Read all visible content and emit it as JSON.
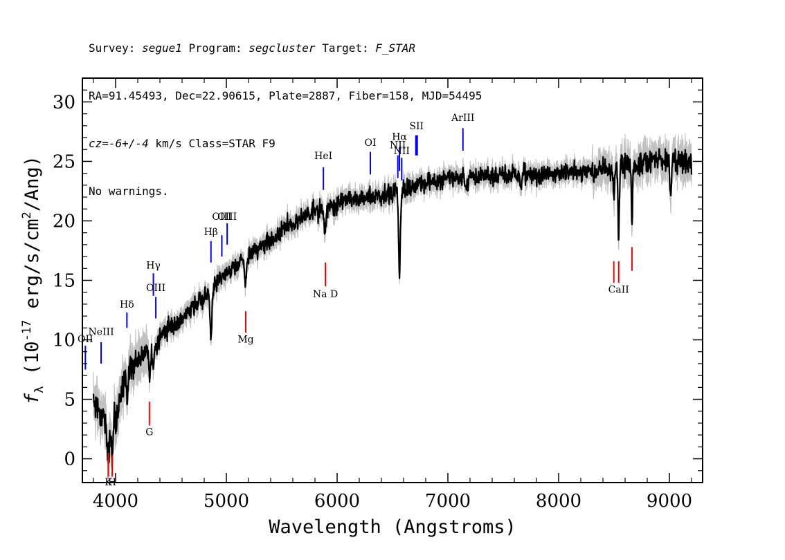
{
  "header": {
    "line1_survey_label": "Survey:",
    "line1_survey": "segue1",
    "line1_program_label": "Program:",
    "line1_program": "segcluster",
    "line1_target_label": "Target:",
    "line1_target": "F_STAR",
    "line2": "RA=91.45493, Dec=22.90615, Plate=2887, Fiber=158, MJD=54495",
    "line3_cz": "cz=-6+/-4",
    "line3_rest": "km/s Class=STAR F9",
    "line4": "No warnings."
  },
  "colors": {
    "flux": "#000000",
    "error_band": "#c0c0c0",
    "emission_line": "#0000ff",
    "absorption_line": "#ff0000"
  },
  "chart_data": {
    "type": "line",
    "xlabel": "Wavelength (Angstroms)",
    "ylabel_parts": [
      "f",
      "λ",
      " (10",
      "-17",
      " erg/s/cm",
      "2",
      "/Ang)"
    ],
    "xlim": [
      3700,
      9300
    ],
    "ylim": [
      -2,
      32
    ],
    "xticks": [
      4000,
      5000,
      6000,
      7000,
      8000,
      9000
    ],
    "yticks": [
      0,
      5,
      10,
      15,
      20,
      25,
      30
    ],
    "grid": false,
    "continuum": {
      "x": [
        3800,
        3850,
        3900,
        3950,
        4000,
        4050,
        4100,
        4150,
        4200,
        4250,
        4300,
        4350,
        4400,
        4450,
        4500,
        4600,
        4700,
        4800,
        4850,
        4900,
        5000,
        5100,
        5200,
        5300,
        5400,
        5500,
        5600,
        5700,
        5800,
        5900,
        6000,
        6100,
        6200,
        6300,
        6400,
        6500,
        6600,
        6700,
        6800,
        6900,
        7000,
        7200,
        7400,
        7600,
        7800,
        8000,
        8200,
        8400,
        8600,
        8800,
        9000,
        9200
      ],
      "y": [
        5.2,
        4.0,
        3.2,
        2.8,
        3.5,
        5.5,
        7.0,
        7.8,
        8.3,
        8.8,
        9.0,
        9.4,
        10.2,
        10.8,
        11.2,
        11.8,
        12.8,
        13.6,
        14.3,
        14.6,
        15.6,
        16.4,
        17.2,
        17.8,
        18.3,
        19.2,
        19.8,
        20.3,
        20.8,
        21.0,
        21.4,
        22.0,
        21.8,
        22.1,
        22.2,
        22.4,
        22.6,
        23.0,
        23.3,
        23.4,
        23.6,
        23.7,
        23.8,
        23.8,
        23.9,
        24.0,
        24.1,
        24.2,
        24.6,
        25.0,
        25.2,
        24.8
      ]
    },
    "absorption_features": [
      {
        "x": 3933,
        "depth": 3.0,
        "width": 8
      },
      {
        "x": 3968,
        "depth": 2.5,
        "width": 8
      },
      {
        "x": 4101,
        "depth": 1.8,
        "width": 6
      },
      {
        "x": 4307,
        "depth": 2.5,
        "width": 8
      },
      {
        "x": 4340,
        "depth": 2.2,
        "width": 6
      },
      {
        "x": 4861,
        "depth": 4.6,
        "width": 8
      },
      {
        "x": 5173,
        "depth": 2.0,
        "width": 10
      },
      {
        "x": 5891,
        "depth": 2.3,
        "width": 7
      },
      {
        "x": 6563,
        "depth": 6.8,
        "width": 8
      },
      {
        "x": 7170,
        "depth": 0.6,
        "width": 12
      },
      {
        "x": 7660,
        "depth": 1.2,
        "width": 8
      },
      {
        "x": 8498,
        "depth": 2.3,
        "width": 6
      },
      {
        "x": 8542,
        "depth": 5.8,
        "width": 6
      },
      {
        "x": 8662,
        "depth": 4.9,
        "width": 6
      },
      {
        "x": 9010,
        "depth": 2.8,
        "width": 8
      }
    ],
    "noise": {
      "flux_scatter": 0.55,
      "error_sigma_near_blue": 1.3,
      "error_sigma_mid": 0.6,
      "error_sigma_red": 1.1,
      "seed": 17
    },
    "emission_markers": [
      {
        "label": "OII",
        "x": 3727,
        "y_bottom": 7.5,
        "y_top": 9.5,
        "label_y": 9.8,
        "thick": false
      },
      {
        "label": "NeIII",
        "x": 3869,
        "y_bottom": 8.0,
        "y_top": 9.8,
        "label_y": 10.4,
        "thick": false
      },
      {
        "label": "Hδ",
        "x": 4102,
        "y_bottom": 11.0,
        "y_top": 12.3,
        "label_y": 12.7,
        "thick": false
      },
      {
        "label": "Hγ",
        "x": 4341,
        "y_bottom": 13.7,
        "y_top": 15.6,
        "label_y": 16.0,
        "thick": false
      },
      {
        "label": "OIII",
        "x": 4363,
        "y_bottom": 11.8,
        "y_top": 13.6,
        "label_y": 14.1,
        "thick": false
      },
      {
        "label": "Hβ",
        "x": 4861,
        "y_bottom": 16.5,
        "y_top": 18.3,
        "label_y": 18.8,
        "thick": false
      },
      {
        "label": "OIII",
        "x": 4959,
        "y_bottom": 17.0,
        "y_top": 18.8,
        "label_y": 20.1,
        "thick": false
      },
      {
        "label": "OIII",
        "x": 5007,
        "y_bottom": 18.0,
        "y_top": 19.8,
        "label_y": 20.1,
        "thick": false
      },
      {
        "label": "HeI",
        "x": 5876,
        "y_bottom": 22.6,
        "y_top": 24.5,
        "label_y": 25.2,
        "thick": false
      },
      {
        "label": "OI",
        "x": 6300,
        "y_bottom": 23.9,
        "y_top": 25.8,
        "label_y": 26.3,
        "thick": false
      },
      {
        "label": "NII",
        "x": 6548,
        "y_bottom": 23.6,
        "y_top": 25.5,
        "label_y": 26.1,
        "thick": false
      },
      {
        "label": "Hα",
        "x": 6563,
        "y_bottom": 24.2,
        "y_top": 26.2,
        "label_y": 26.8,
        "thick": false
      },
      {
        "label": "NII",
        "x": 6583,
        "y_bottom": 23.4,
        "y_top": 25.3,
        "label_y": 25.6,
        "thick": false
      },
      {
        "label": "SII",
        "x": 6717,
        "y_bottom": 25.5,
        "y_top": 27.2,
        "label_y": 27.7,
        "thick": true
      },
      {
        "label": "ArIII",
        "x": 7136,
        "y_bottom": 25.9,
        "y_top": 27.8,
        "label_y": 28.4,
        "thick": false
      }
    ],
    "absorption_markers": [
      {
        "label": "K",
        "x": 3934,
        "y_top": 0.5,
        "y_bottom": -1.5,
        "label_y": -2.0
      },
      {
        "label": "H",
        "x": 3969,
        "y_top": 0.3,
        "y_bottom": -1.5,
        "label_y": -2.0
      },
      {
        "label": "G",
        "x": 4305,
        "y_top": 4.8,
        "y_bottom": 2.8,
        "label_y": 2.2
      },
      {
        "label": "Mg",
        "x": 5175,
        "y_top": 12.4,
        "y_bottom": 10.6,
        "label_y": 10.0
      },
      {
        "label": "Na  D",
        "x": 5894,
        "y_top": 16.5,
        "y_bottom": 14.5,
        "label_y": 13.8
      },
      {
        "label": "",
        "x": 8498,
        "y_top": 16.6,
        "y_bottom": 14.8,
        "label_y": 14.2
      },
      {
        "label": "CaII",
        "x": 8542,
        "y_top": 16.6,
        "y_bottom": 14.8,
        "label_y": 14.2
      },
      {
        "label": "",
        "x": 8662,
        "y_top": 17.8,
        "y_bottom": 15.8,
        "label_y": 15.2
      }
    ]
  }
}
